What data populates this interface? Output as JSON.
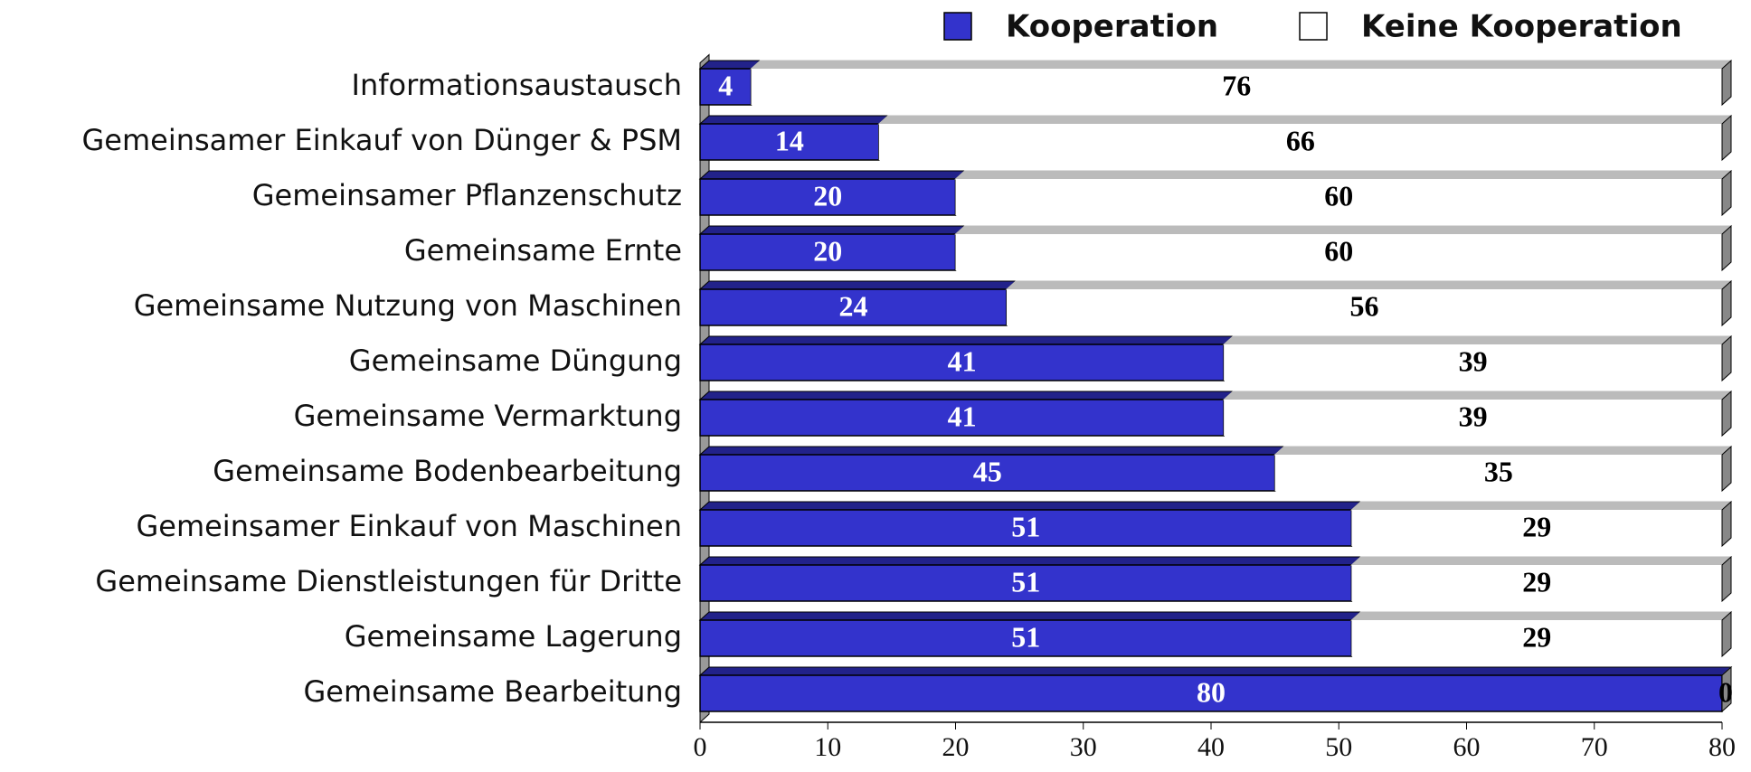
{
  "chart_data": {
    "type": "stacked-bar-horizontal",
    "categories": [
      "Informationsaustausch",
      "Gemeinsamer Einkauf von Dünger & PSM",
      "Gemeinsamer Pflanzenschutz",
      "Gemeinsame Ernte",
      "Gemeinsame Nutzung von Maschinen",
      "Gemeinsame Düngung",
      "Gemeinsame Vermarktung",
      "Gemeinsame Bodenbearbeitung",
      "Gemeinsamer Einkauf von Maschinen",
      "Gemeinsame Dienstleistungen für Dritte",
      "Gemeinsame Lagerung",
      "Gemeinsame Bearbeitung"
    ],
    "series": [
      {
        "name": "Kooperation",
        "color": "#3333cc",
        "values": [
          4,
          14,
          20,
          20,
          24,
          41,
          41,
          45,
          51,
          51,
          51,
          80
        ]
      },
      {
        "name": "Keine Kooperation",
        "color": "#ffffff",
        "values": [
          76,
          66,
          60,
          60,
          56,
          39,
          39,
          35,
          29,
          29,
          29,
          0
        ]
      }
    ],
    "xlim": [
      0,
      80
    ],
    "xticks": [
      0,
      10,
      20,
      30,
      40,
      50,
      60,
      70,
      80
    ],
    "legend": "top"
  }
}
